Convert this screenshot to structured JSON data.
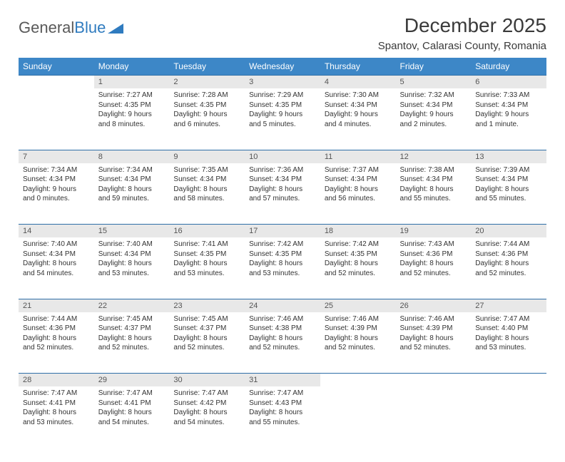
{
  "brand": {
    "part1": "General",
    "part2": "Blue"
  },
  "title": "December 2025",
  "subtitle": "Spantov, Calarasi County, Romania",
  "header_bg": "#3d87c7",
  "daynum_bg": "#e8e8e8",
  "border_color": "#2f6fa8",
  "weekdays": [
    "Sunday",
    "Monday",
    "Tuesday",
    "Wednesday",
    "Thursday",
    "Friday",
    "Saturday"
  ],
  "weeks": [
    [
      null,
      {
        "n": "1",
        "sr": "Sunrise: 7:27 AM",
        "ss": "Sunset: 4:35 PM",
        "dl": "Daylight: 9 hours and 8 minutes."
      },
      {
        "n": "2",
        "sr": "Sunrise: 7:28 AM",
        "ss": "Sunset: 4:35 PM",
        "dl": "Daylight: 9 hours and 6 minutes."
      },
      {
        "n": "3",
        "sr": "Sunrise: 7:29 AM",
        "ss": "Sunset: 4:35 PM",
        "dl": "Daylight: 9 hours and 5 minutes."
      },
      {
        "n": "4",
        "sr": "Sunrise: 7:30 AM",
        "ss": "Sunset: 4:34 PM",
        "dl": "Daylight: 9 hours and 4 minutes."
      },
      {
        "n": "5",
        "sr": "Sunrise: 7:32 AM",
        "ss": "Sunset: 4:34 PM",
        "dl": "Daylight: 9 hours and 2 minutes."
      },
      {
        "n": "6",
        "sr": "Sunrise: 7:33 AM",
        "ss": "Sunset: 4:34 PM",
        "dl": "Daylight: 9 hours and 1 minute."
      }
    ],
    [
      {
        "n": "7",
        "sr": "Sunrise: 7:34 AM",
        "ss": "Sunset: 4:34 PM",
        "dl": "Daylight: 9 hours and 0 minutes."
      },
      {
        "n": "8",
        "sr": "Sunrise: 7:34 AM",
        "ss": "Sunset: 4:34 PM",
        "dl": "Daylight: 8 hours and 59 minutes."
      },
      {
        "n": "9",
        "sr": "Sunrise: 7:35 AM",
        "ss": "Sunset: 4:34 PM",
        "dl": "Daylight: 8 hours and 58 minutes."
      },
      {
        "n": "10",
        "sr": "Sunrise: 7:36 AM",
        "ss": "Sunset: 4:34 PM",
        "dl": "Daylight: 8 hours and 57 minutes."
      },
      {
        "n": "11",
        "sr": "Sunrise: 7:37 AM",
        "ss": "Sunset: 4:34 PM",
        "dl": "Daylight: 8 hours and 56 minutes."
      },
      {
        "n": "12",
        "sr": "Sunrise: 7:38 AM",
        "ss": "Sunset: 4:34 PM",
        "dl": "Daylight: 8 hours and 55 minutes."
      },
      {
        "n": "13",
        "sr": "Sunrise: 7:39 AM",
        "ss": "Sunset: 4:34 PM",
        "dl": "Daylight: 8 hours and 55 minutes."
      }
    ],
    [
      {
        "n": "14",
        "sr": "Sunrise: 7:40 AM",
        "ss": "Sunset: 4:34 PM",
        "dl": "Daylight: 8 hours and 54 minutes."
      },
      {
        "n": "15",
        "sr": "Sunrise: 7:40 AM",
        "ss": "Sunset: 4:34 PM",
        "dl": "Daylight: 8 hours and 53 minutes."
      },
      {
        "n": "16",
        "sr": "Sunrise: 7:41 AM",
        "ss": "Sunset: 4:35 PM",
        "dl": "Daylight: 8 hours and 53 minutes."
      },
      {
        "n": "17",
        "sr": "Sunrise: 7:42 AM",
        "ss": "Sunset: 4:35 PM",
        "dl": "Daylight: 8 hours and 53 minutes."
      },
      {
        "n": "18",
        "sr": "Sunrise: 7:42 AM",
        "ss": "Sunset: 4:35 PM",
        "dl": "Daylight: 8 hours and 52 minutes."
      },
      {
        "n": "19",
        "sr": "Sunrise: 7:43 AM",
        "ss": "Sunset: 4:36 PM",
        "dl": "Daylight: 8 hours and 52 minutes."
      },
      {
        "n": "20",
        "sr": "Sunrise: 7:44 AM",
        "ss": "Sunset: 4:36 PM",
        "dl": "Daylight: 8 hours and 52 minutes."
      }
    ],
    [
      {
        "n": "21",
        "sr": "Sunrise: 7:44 AM",
        "ss": "Sunset: 4:36 PM",
        "dl": "Daylight: 8 hours and 52 minutes."
      },
      {
        "n": "22",
        "sr": "Sunrise: 7:45 AM",
        "ss": "Sunset: 4:37 PM",
        "dl": "Daylight: 8 hours and 52 minutes."
      },
      {
        "n": "23",
        "sr": "Sunrise: 7:45 AM",
        "ss": "Sunset: 4:37 PM",
        "dl": "Daylight: 8 hours and 52 minutes."
      },
      {
        "n": "24",
        "sr": "Sunrise: 7:46 AM",
        "ss": "Sunset: 4:38 PM",
        "dl": "Daylight: 8 hours and 52 minutes."
      },
      {
        "n": "25",
        "sr": "Sunrise: 7:46 AM",
        "ss": "Sunset: 4:39 PM",
        "dl": "Daylight: 8 hours and 52 minutes."
      },
      {
        "n": "26",
        "sr": "Sunrise: 7:46 AM",
        "ss": "Sunset: 4:39 PM",
        "dl": "Daylight: 8 hours and 52 minutes."
      },
      {
        "n": "27",
        "sr": "Sunrise: 7:47 AM",
        "ss": "Sunset: 4:40 PM",
        "dl": "Daylight: 8 hours and 53 minutes."
      }
    ],
    [
      {
        "n": "28",
        "sr": "Sunrise: 7:47 AM",
        "ss": "Sunset: 4:41 PM",
        "dl": "Daylight: 8 hours and 53 minutes."
      },
      {
        "n": "29",
        "sr": "Sunrise: 7:47 AM",
        "ss": "Sunset: 4:41 PM",
        "dl": "Daylight: 8 hours and 54 minutes."
      },
      {
        "n": "30",
        "sr": "Sunrise: 7:47 AM",
        "ss": "Sunset: 4:42 PM",
        "dl": "Daylight: 8 hours and 54 minutes."
      },
      {
        "n": "31",
        "sr": "Sunrise: 7:47 AM",
        "ss": "Sunset: 4:43 PM",
        "dl": "Daylight: 8 hours and 55 minutes."
      },
      null,
      null,
      null
    ]
  ]
}
